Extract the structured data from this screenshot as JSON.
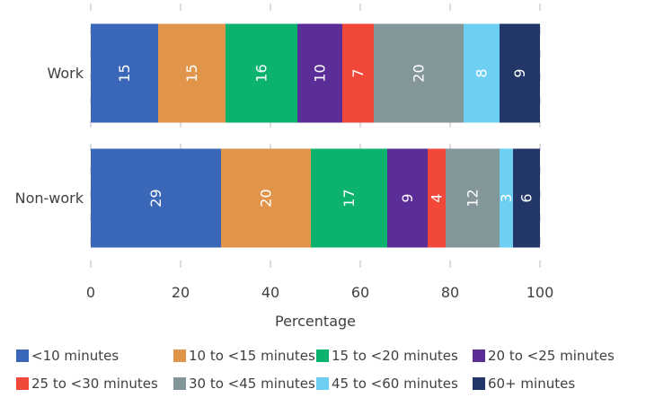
{
  "chart_data": {
    "type": "bar",
    "orientation": "horizontal",
    "stacked": true,
    "title": "",
    "xlabel": "Percentage",
    "ylabel": "",
    "xlim": [
      0,
      100
    ],
    "xticks": [
      0,
      20,
      40,
      60,
      80,
      100
    ],
    "grid": "vertical",
    "legend_position": "bottom",
    "categories": [
      "Work",
      "Non-work"
    ],
    "series": [
      {
        "name": "<10 minutes",
        "color": "#3b67b8",
        "values": [
          15,
          29
        ]
      },
      {
        "name": "10 to <15 minutes",
        "color": "#e0954b",
        "values": [
          15,
          20
        ]
      },
      {
        "name": "15 to <20 minutes",
        "color": "#0bb36e",
        "values": [
          16,
          17
        ]
      },
      {
        "name": "20 to <25 minutes",
        "color": "#5b2d97",
        "values": [
          10,
          9
        ]
      },
      {
        "name": "25 to <30 minutes",
        "color": "#f2483a",
        "values": [
          7,
          4
        ]
      },
      {
        "name": "30 to <45 minutes",
        "color": "#83969a",
        "values": [
          20,
          12
        ]
      },
      {
        "name": "45 to <60 minutes",
        "color": "#6dd0f3",
        "values": [
          8,
          3
        ]
      },
      {
        "name": "60+ minutes",
        "color": "#223767",
        "values": [
          9,
          6
        ]
      }
    ]
  }
}
